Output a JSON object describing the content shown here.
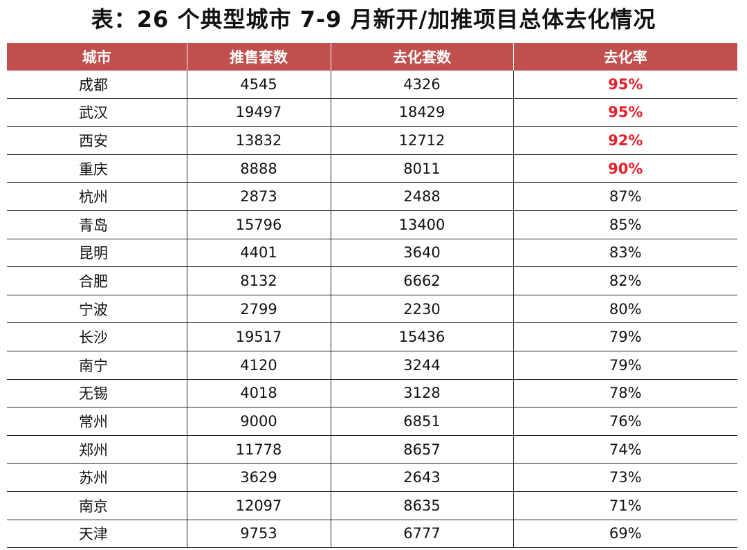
{
  "title": "表：26 个典型城市 7-9 月新开/加推项目总体去化情况",
  "highlight_color": "#e8202a",
  "header_color": "#c0504d",
  "table": {
    "headers": [
      "城市",
      "推售套数",
      "去化套数",
      "去化率"
    ],
    "rows": [
      {
        "city": "成都",
        "offered": "4545",
        "sold": "4326",
        "rate": "95%",
        "highlight": true
      },
      {
        "city": "武汉",
        "offered": "19497",
        "sold": "18429",
        "rate": "95%",
        "highlight": true
      },
      {
        "city": "西安",
        "offered": "13832",
        "sold": "12712",
        "rate": "92%",
        "highlight": true
      },
      {
        "city": "重庆",
        "offered": "8888",
        "sold": "8011",
        "rate": "90%",
        "highlight": true
      },
      {
        "city": "杭州",
        "offered": "2873",
        "sold": "2488",
        "rate": "87%",
        "highlight": false
      },
      {
        "city": "青岛",
        "offered": "15796",
        "sold": "13400",
        "rate": "85%",
        "highlight": false
      },
      {
        "city": "昆明",
        "offered": "4401",
        "sold": "3640",
        "rate": "83%",
        "highlight": false
      },
      {
        "city": "合肥",
        "offered": "8132",
        "sold": "6662",
        "rate": "82%",
        "highlight": false
      },
      {
        "city": "宁波",
        "offered": "2799",
        "sold": "2230",
        "rate": "80%",
        "highlight": false
      },
      {
        "city": "长沙",
        "offered": "19517",
        "sold": "15436",
        "rate": "79%",
        "highlight": false
      },
      {
        "city": "南宁",
        "offered": "4120",
        "sold": "3244",
        "rate": "79%",
        "highlight": false
      },
      {
        "city": "无锡",
        "offered": "4018",
        "sold": "3128",
        "rate": "78%",
        "highlight": false
      },
      {
        "city": "常州",
        "offered": "9000",
        "sold": "6851",
        "rate": "76%",
        "highlight": false
      },
      {
        "city": "郑州",
        "offered": "11778",
        "sold": "8657",
        "rate": "74%",
        "highlight": false
      },
      {
        "city": "苏州",
        "offered": "3629",
        "sold": "2643",
        "rate": "73%",
        "highlight": false
      },
      {
        "city": "南京",
        "offered": "12097",
        "sold": "8635",
        "rate": "71%",
        "highlight": false
      },
      {
        "city": "天津",
        "offered": "9753",
        "sold": "6777",
        "rate": "69%",
        "highlight": false
      }
    ]
  }
}
